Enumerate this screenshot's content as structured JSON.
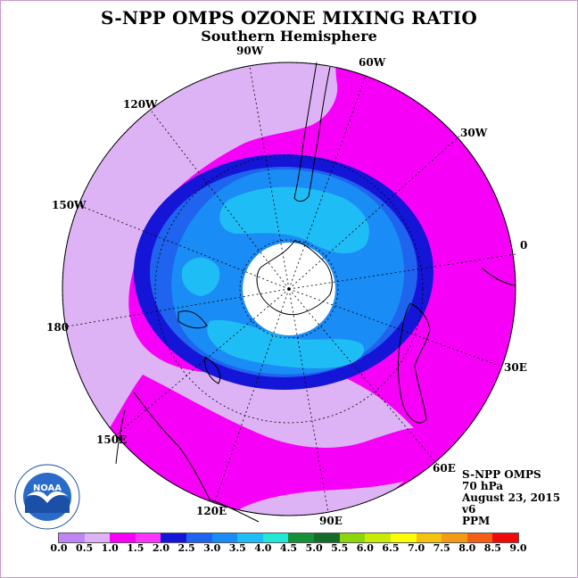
{
  "title": "S-NPP OMPS OZONE MIXING RATIO",
  "subtitle": "Southern Hemisphere",
  "longitude_labels": {
    "lon_90w": "90W",
    "lon_60w": "60W",
    "lon_30w": "30W",
    "lon_0": "0",
    "lon_30e": "30E",
    "lon_60e": "60E",
    "lon_90e": "90E",
    "lon_120e": "120E",
    "lon_150e": "150E",
    "lon_180": "180",
    "lon_150w": "150W",
    "lon_120w": "120W"
  },
  "info": {
    "instrument": "S-NPP OMPS",
    "level": "70 hPa",
    "date": "August 23, 2015",
    "version": "v6",
    "units": "PPM"
  },
  "logo": {
    "text": "NOAA",
    "arc_text": "NATIONAL OCEANIC AND ATMOSPHERIC ADMINISTRATION",
    "colors": {
      "ring": "#ffffff",
      "sky": "#2a6bc9",
      "sea": "#1c4fa6",
      "bird": "#ffffff"
    }
  },
  "colorbar": {
    "colors": [
      "#bf85f5",
      "#deb3f5",
      "#f700f7",
      "#ff33ff",
      "#1515d8",
      "#1e64ee",
      "#1a8cf5",
      "#1fbdf5",
      "#22e6d6",
      "#158f38",
      "#156b2c",
      "#8cd60a",
      "#c8ec08",
      "#fdfd0a",
      "#f5c30f",
      "#f59a14",
      "#f55f14",
      "#f00a0a",
      "#8c5528"
    ],
    "ticks": [
      "0.0",
      "0.5",
      "1.0",
      "1.5",
      "2.0",
      "2.5",
      "3.0",
      "3.5",
      "4.0",
      "4.5",
      "5.0",
      "5.5",
      "6.0",
      "6.5",
      "7.0",
      "7.5",
      "8.0",
      "8.5",
      "9.0"
    ]
  },
  "field_colors": {
    "lavender": "#deb3f5",
    "magenta": "#f700f7",
    "violet": "#bf85f5",
    "navy": "#1515d8",
    "blue": "#1e64ee",
    "mid_blue": "#1a8cf5",
    "light_blue": "#1fbdf5",
    "pole": "#ffffff"
  }
}
